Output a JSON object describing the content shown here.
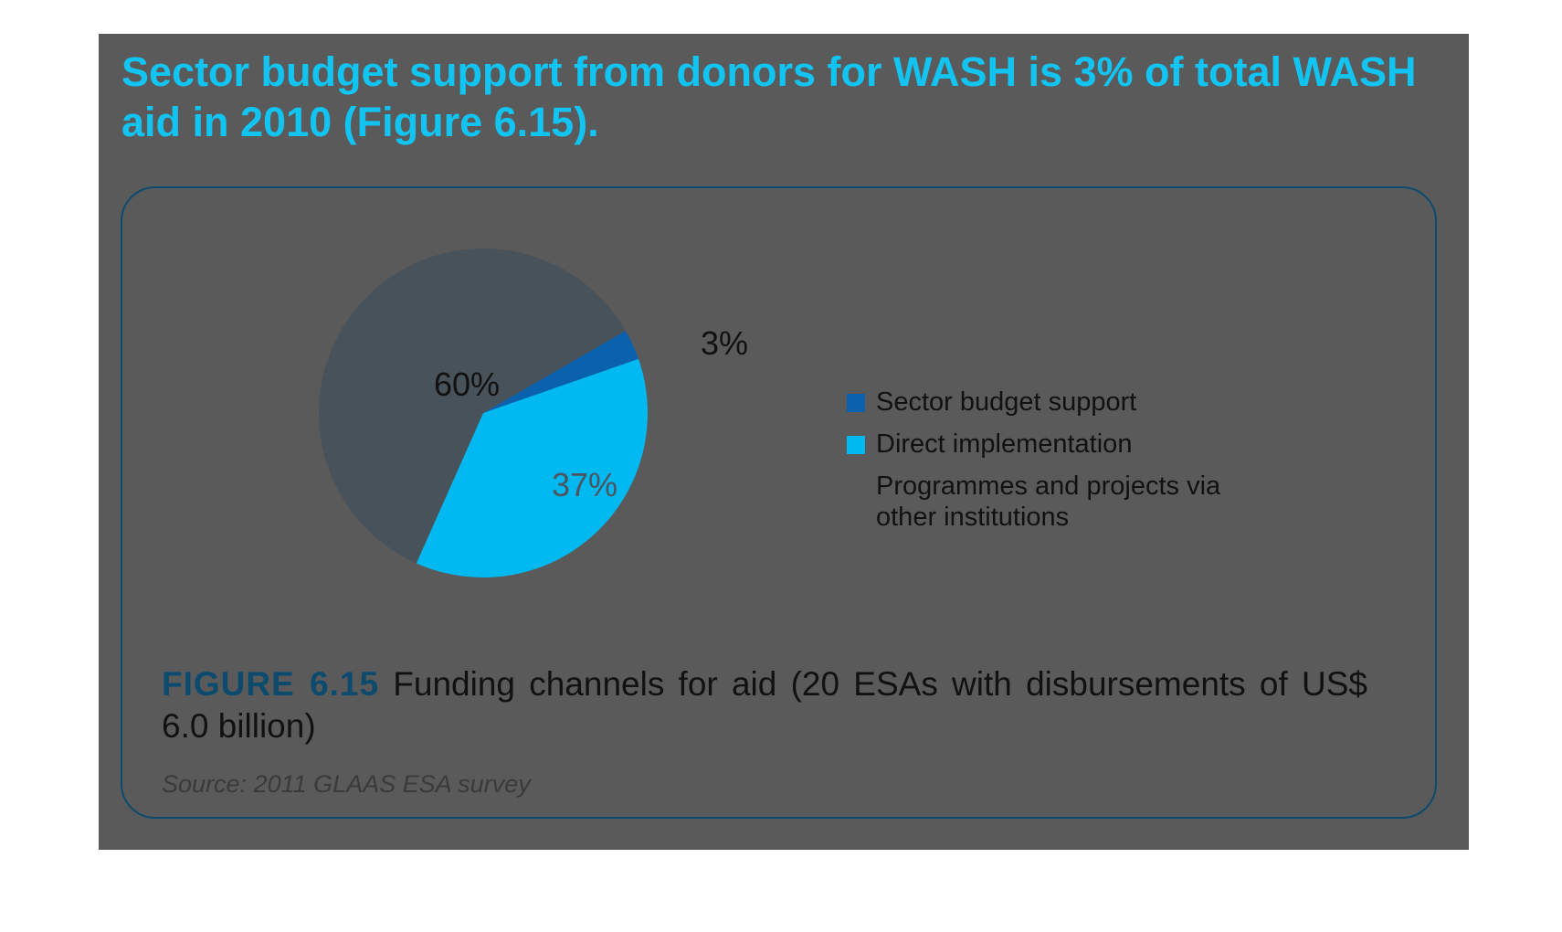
{
  "headline": "Sector budget support from donors for WASH is 3% of total WASH aid in 2010 (Figure 6.15).",
  "chart_data": {
    "type": "pie",
    "slices": [
      {
        "name": "Sector budget support",
        "value": 3,
        "label": "3%",
        "color": "#0a62ae"
      },
      {
        "name": "Direct implementation",
        "value": 37,
        "label": "37%",
        "color": "#00b9f1"
      },
      {
        "name": "Programmes and projects via other institutions",
        "value": 60,
        "label": "60%",
        "color": "#48525a"
      }
    ],
    "legend": [
      {
        "label": "Sector budget support",
        "color": "#0a62ae"
      },
      {
        "label": "Direct implementation",
        "color": "#00b9f1"
      },
      {
        "label": "Programmes and projects via other institutions",
        "color": null
      }
    ]
  },
  "caption": {
    "number": "FIGURE 6.15",
    "text": " Funding channels for aid (20 ESAs with disbursements of US$ 6.0 billion)"
  },
  "source": "Source: 2011 GLAAS ESA survey",
  "colors": {
    "panel": "#5a5a5a",
    "headline": "#11c4f2",
    "frame": "#0c4a6e"
  }
}
